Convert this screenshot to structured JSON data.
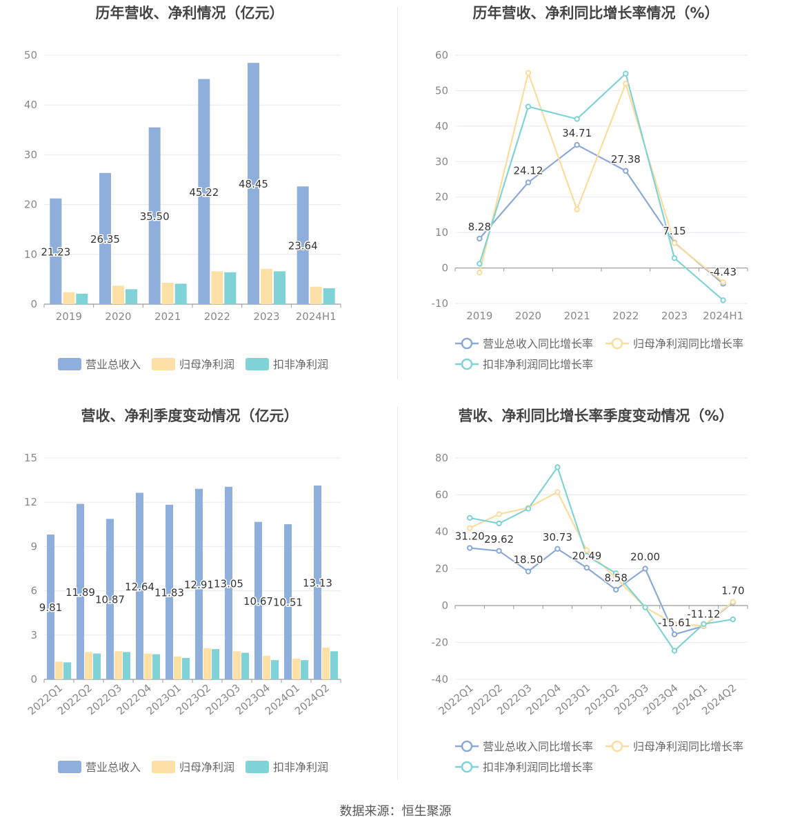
{
  "source_text": "数据来源：恒生聚源",
  "colors": {
    "revenue": "#8eaedb",
    "parent_profit": "#fde0a6",
    "deducted_profit": "#7fd3d6",
    "revenue_line": "#8aa8d8",
    "parent_line": "#fbdc9c",
    "deducted_line": "#7fd3d6",
    "grid": "#e8e8f0",
    "axis": "#999999",
    "tick": "#888888",
    "title": "#444444",
    "label": "#333333"
  },
  "chart_data": [
    {
      "id": "annual_revenue_profit",
      "type": "bar",
      "title": "历年营收、净利情况（亿元）",
      "categories": [
        "2019",
        "2020",
        "2021",
        "2022",
        "2023",
        "2024H1"
      ],
      "ylim": [
        0,
        50
      ],
      "yticks": [
        0,
        10,
        20,
        30,
        40,
        50
      ],
      "grid": true,
      "legend_position": "bottom",
      "series": [
        {
          "name": "营业总收入",
          "values": [
            21.23,
            26.35,
            35.5,
            45.22,
            48.45,
            23.64
          ],
          "labels": [
            "21.23",
            "26.35",
            "35.50",
            "45.22",
            "48.45",
            "23.64"
          ]
        },
        {
          "name": "归母净利润",
          "values": [
            2.4,
            3.7,
            4.3,
            6.6,
            7.1,
            3.5
          ]
        },
        {
          "name": "扣非净利润",
          "values": [
            2.1,
            3.0,
            4.1,
            6.4,
            6.6,
            3.2
          ]
        }
      ]
    },
    {
      "id": "annual_growth",
      "type": "line",
      "title": "历年营收、净利同比增长率情况（%）",
      "categories": [
        "2019",
        "2020",
        "2021",
        "2022",
        "2023",
        "2024H1"
      ],
      "ylim": [
        -10,
        60
      ],
      "yticks": [
        -10,
        0,
        10,
        20,
        30,
        40,
        50,
        60
      ],
      "grid": true,
      "legend_position": "bottom",
      "series": [
        {
          "name": "营业总收入同比增长率",
          "values": [
            8.28,
            24.12,
            34.71,
            27.38,
            7.15,
            -4.43
          ],
          "labels": [
            "8.28",
            "24.12",
            "34.71",
            "27.38",
            "7.15",
            "-4.43"
          ]
        },
        {
          "name": "归母净利润同比增长率",
          "values": [
            -1.3,
            55.0,
            16.5,
            52.0,
            7.0,
            -4.0
          ]
        },
        {
          "name": "扣非净利润同比增长率",
          "values": [
            1.2,
            45.5,
            42.0,
            54.8,
            2.8,
            -9.1
          ]
        }
      ]
    },
    {
      "id": "quarterly_revenue_profit",
      "type": "bar",
      "title": "营收、净利季度变动情况（亿元）",
      "categories": [
        "2022Q1",
        "2022Q2",
        "2022Q3",
        "2022Q4",
        "2023Q1",
        "2023Q2",
        "2023Q3",
        "2023Q4",
        "2024Q1",
        "2024Q2"
      ],
      "ylim": [
        0,
        15
      ],
      "yticks": [
        0,
        3,
        6,
        9,
        12,
        15
      ],
      "grid": true,
      "legend_position": "bottom",
      "series": [
        {
          "name": "营业总收入",
          "values": [
            9.81,
            11.89,
            10.87,
            12.64,
            11.83,
            12.91,
            13.05,
            10.67,
            10.51,
            13.13
          ],
          "labels": [
            "9.81",
            "11.89",
            "10.87",
            "12.64",
            "11.83",
            "12.91",
            "13.05",
            "10.67",
            "10.51",
            "13.13"
          ]
        },
        {
          "name": "归母净利润",
          "values": [
            1.2,
            1.85,
            1.9,
            1.75,
            1.55,
            2.1,
            1.9,
            1.6,
            1.4,
            2.15
          ]
        },
        {
          "name": "扣非净利润",
          "values": [
            1.15,
            1.75,
            1.85,
            1.7,
            1.45,
            2.05,
            1.8,
            1.3,
            1.3,
            1.9
          ]
        }
      ]
    },
    {
      "id": "quarterly_growth",
      "type": "line",
      "title": "营收、净利同比增长率季度变动情况（%）",
      "categories": [
        "2022Q1",
        "2022Q2",
        "2022Q3",
        "2022Q4",
        "2023Q1",
        "2023Q2",
        "2023Q3",
        "2023Q4",
        "2024Q1",
        "2024Q2"
      ],
      "ylim": [
        -40,
        80
      ],
      "yticks": [
        -40,
        -20,
        0,
        20,
        40,
        60,
        80
      ],
      "grid": true,
      "legend_position": "bottom",
      "series": [
        {
          "name": "营业总收入同比增长率",
          "values": [
            31.2,
            29.62,
            18.5,
            30.73,
            20.49,
            8.58,
            20.0,
            -15.61,
            -11.12,
            1.7
          ],
          "labels": [
            "31.20",
            "29.62",
            "18.50",
            "30.73",
            "20.49",
            "8.58",
            "20.00",
            "-15.61",
            "-11.12",
            "1.70"
          ]
        },
        {
          "name": "归母净利润同比增长率",
          "values": [
            42.0,
            49.5,
            53.0,
            61.5,
            30.0,
            15.0,
            -1.0,
            -10.0,
            -11.0,
            2.0
          ]
        },
        {
          "name": "扣非净利润同比增长率",
          "values": [
            47.5,
            44.5,
            52.5,
            75.0,
            27.0,
            17.5,
            -1.0,
            -24.5,
            -10.0,
            -7.5
          ]
        }
      ]
    }
  ]
}
